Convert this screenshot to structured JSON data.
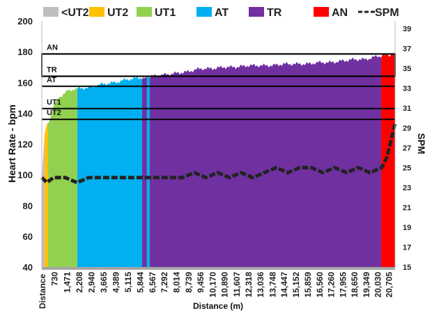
{
  "chart_data": {
    "type": "area",
    "xlabel": "Distance (m)",
    "ylabel": "Heart Rate - bpm",
    "y2label": "SPM",
    "ylim": [
      40,
      200
    ],
    "y2lim": [
      15,
      40
    ],
    "yticks": [
      40,
      60,
      80,
      100,
      120,
      140,
      160,
      180,
      200
    ],
    "y2ticks": [
      15,
      17,
      19,
      21,
      23,
      25,
      27,
      29,
      31,
      33,
      35,
      37,
      39
    ],
    "xlim": [
      0,
      21100
    ],
    "xtick_first": "Distance",
    "xticks": [
      "730",
      "1,471",
      "2,208",
      "2,940",
      "3,665",
      "4,389",
      "5,115",
      "5,844",
      "6,567",
      "7,292",
      "8,014",
      "8,739",
      "9,456",
      "10,170",
      "10,890",
      "11,607",
      "12,318",
      "13,036",
      "13,748",
      "14,447",
      "15,152",
      "15,859",
      "16,560",
      "17,260",
      "17,955",
      "18,650",
      "19,349",
      "20,030",
      "20,705"
    ],
    "legend": [
      {
        "name": "<UT2",
        "color": "#bfbfbf"
      },
      {
        "name": "UT2",
        "color": "#ffc000"
      },
      {
        "name": "UT1",
        "color": "#92d050"
      },
      {
        "name": "AT",
        "color": "#00b0f0"
      },
      {
        "name": "TR",
        "color": "#7030a0"
      },
      {
        "name": "AN",
        "color": "#ff0000"
      },
      {
        "name": "SPM",
        "color": "#222222",
        "dashed": true
      }
    ],
    "zones": [
      {
        "label": "AN",
        "lower_bpm": 178.5
      },
      {
        "label": "TR",
        "lower_bpm": 164
      },
      {
        "label": "AT",
        "lower_bpm": 157.5
      },
      {
        "label": "UT1",
        "lower_bpm": 143
      },
      {
        "label": "UT2",
        "lower_bpm": 136
      }
    ],
    "zone_segments": [
      {
        "zone": "<UT2",
        "from": 0,
        "to": 170,
        "color": "#bfbfbf"
      },
      {
        "zone": "UT2",
        "from": 170,
        "to": 375,
        "color": "#ffc000"
      },
      {
        "zone": "UT1",
        "from": 375,
        "to": 2120,
        "color": "#92d050"
      },
      {
        "zone": "AT",
        "from": 2120,
        "to": 5990,
        "color": "#00b0f0"
      },
      {
        "zone": "TR",
        "from": 5990,
        "to": 6280,
        "color": "#7030a0"
      },
      {
        "zone": "AT",
        "from": 6280,
        "to": 6450,
        "color": "#00b0f0"
      },
      {
        "zone": "TR",
        "from": 6450,
        "to": 20270,
        "color": "#7030a0"
      },
      {
        "zone": "AN",
        "from": 20270,
        "to": 21100,
        "color": "#ff0000"
      }
    ],
    "heart_rate": {
      "x": [
        0,
        150,
        300,
        500,
        730,
        1000,
        1471,
        2000,
        2208,
        2940,
        3665,
        4389,
        5115,
        5844,
        6567,
        7292,
        8014,
        8739,
        9456,
        10170,
        10890,
        11607,
        12318,
        13036,
        13748,
        14447,
        15152,
        15859,
        16560,
        17260,
        17955,
        18650,
        19349,
        20030,
        20705,
        21100
      ],
      "y": [
        95,
        125,
        132,
        137,
        145,
        150,
        154,
        156,
        156,
        157,
        159,
        160,
        162,
        163,
        164,
        165,
        166,
        167,
        169,
        169,
        170,
        170,
        171,
        171,
        171,
        172,
        172,
        172,
        173,
        173,
        174,
        175,
        175,
        177,
        178,
        178
      ]
    },
    "spm": {
      "x": [
        0,
        300,
        700,
        1400,
        2100,
        2800,
        3500,
        4200,
        4900,
        5600,
        6300,
        7000,
        7700,
        8400,
        9100,
        9800,
        10500,
        11200,
        11900,
        12600,
        13300,
        14000,
        14700,
        15400,
        16100,
        16800,
        17500,
        18200,
        18900,
        19600,
        20300,
        20600,
        20900,
        21100
      ],
      "y": [
        24,
        23.5,
        24,
        24,
        23.5,
        24,
        24,
        24,
        24,
        24,
        24,
        24,
        24,
        24,
        24.5,
        24,
        24.5,
        24,
        24.5,
        24,
        24.5,
        25,
        24.5,
        25,
        25,
        24.5,
        25,
        24.5,
        25,
        24.5,
        25,
        26,
        28,
        29.5
      ]
    }
  }
}
